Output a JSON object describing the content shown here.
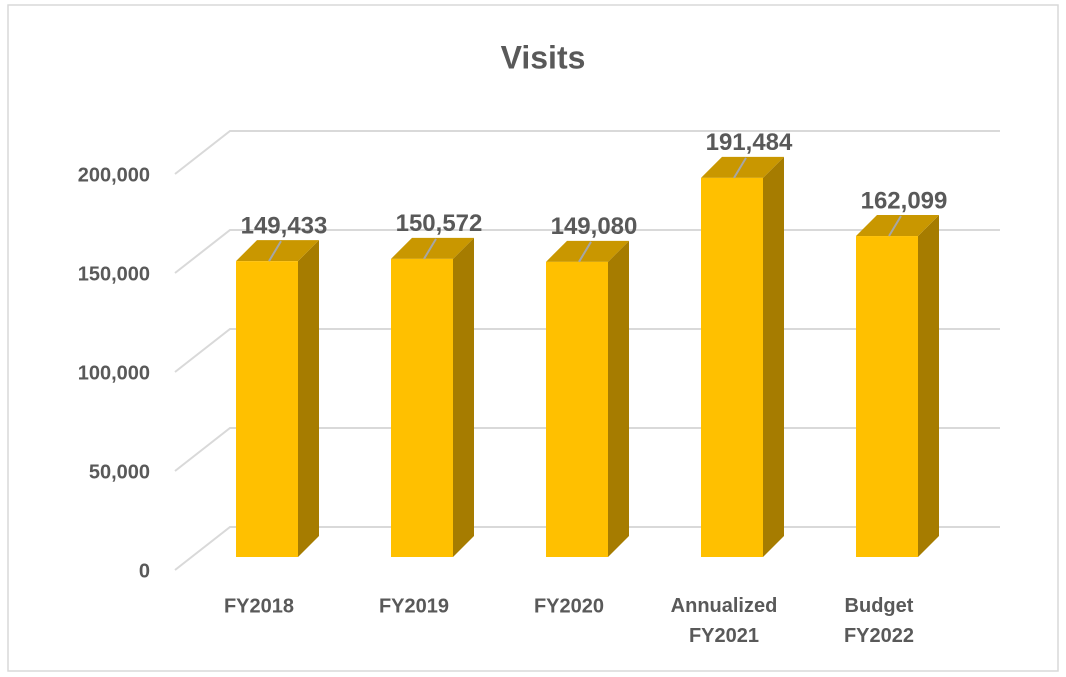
{
  "chart_data": {
    "type": "bar3d",
    "title": "Visits",
    "categories": [
      "FY2018",
      "FY2019",
      "FY2020",
      "Annualized FY2021",
      "Budget FY2022"
    ],
    "values": [
      149433,
      150572,
      149080,
      191484,
      162099
    ],
    "value_labels": [
      "149,433",
      "150,572",
      "149,080",
      "191,484",
      "162,099"
    ],
    "color": "#ffc000",
    "ylim": [
      0,
      200000
    ],
    "yticks": [
      0,
      {
        "value": 50000,
        "label": "50,000"
      },
      {
        "value": 100000,
        "label": "100,000"
      },
      {
        "value": 150000,
        "label": "150,000"
      },
      {
        "value": 200000,
        "label": "200,000"
      }
    ],
    "grid": true
  }
}
